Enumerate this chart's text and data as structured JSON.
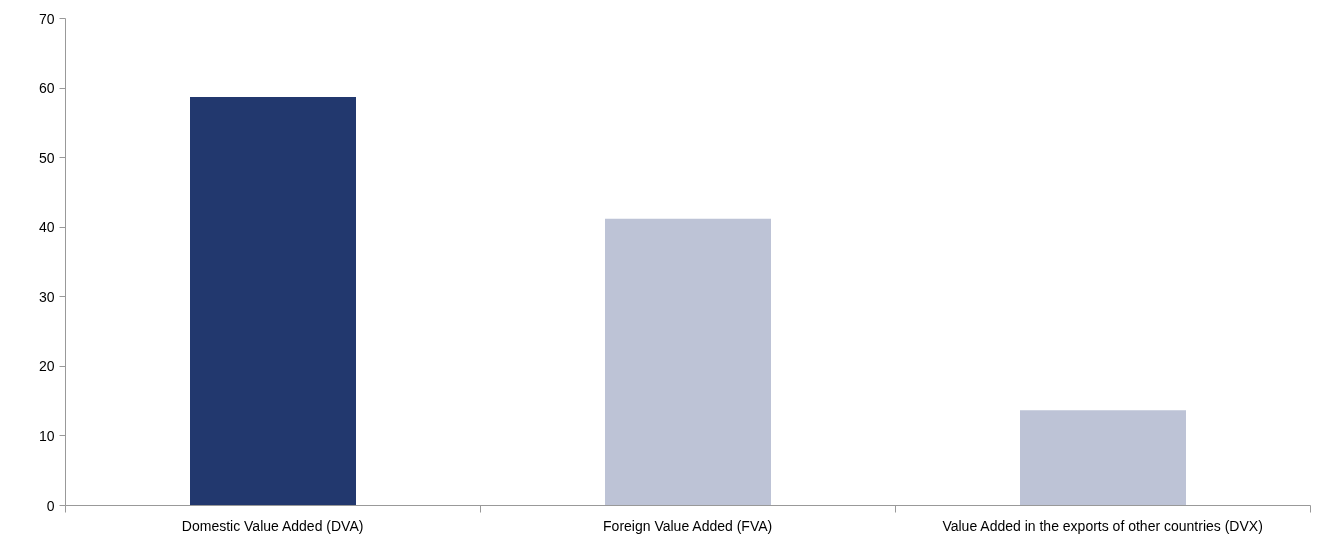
{
  "chart_data": {
    "type": "bar",
    "categories": [
      "Domestic Value Added (DVA)",
      "Foreign Value Added (FVA)",
      "Value Added in the exports of other countries (DVX)"
    ],
    "values": [
      58.7,
      41.2,
      13.7
    ],
    "colors": [
      "#22386e",
      "#bdc3d6",
      "#bdc3d6"
    ],
    "ylim": [
      0,
      70
    ],
    "yticks": [
      0,
      10,
      20,
      30,
      40,
      50,
      60,
      70
    ],
    "grid": false
  }
}
